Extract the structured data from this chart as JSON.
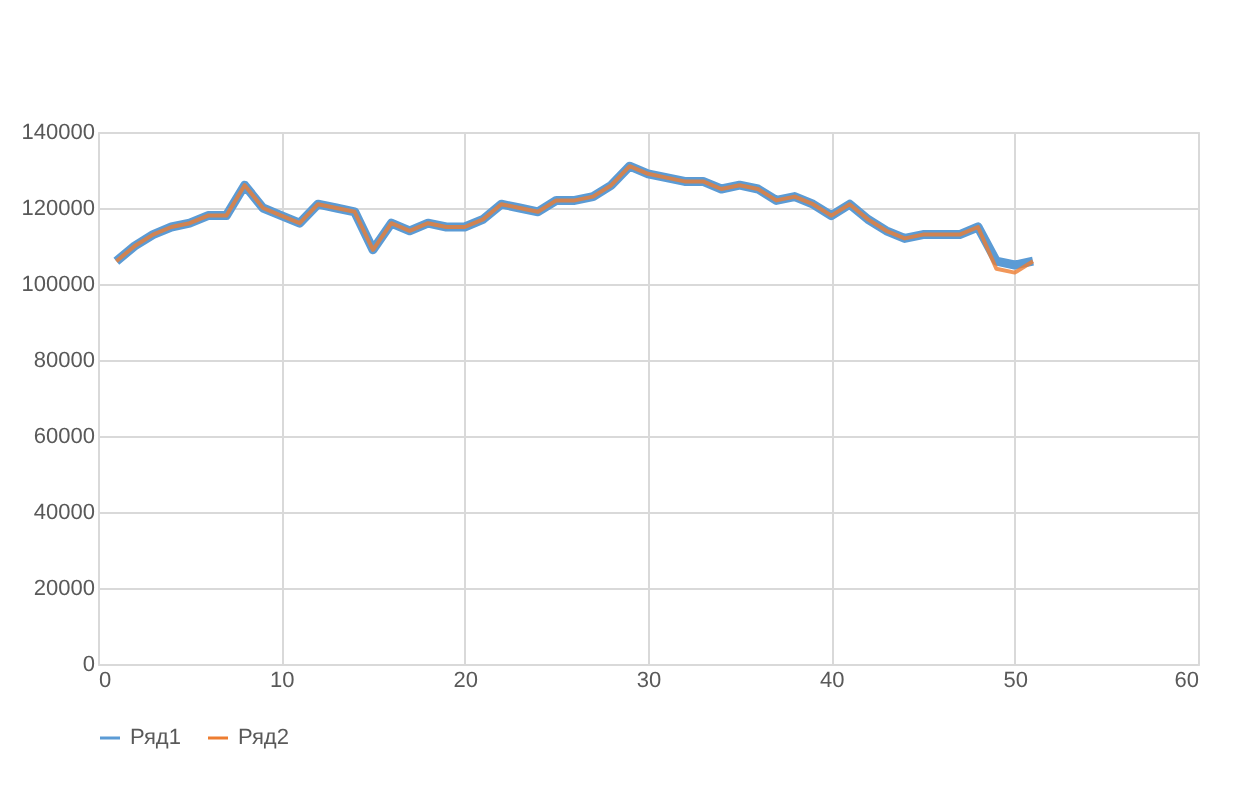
{
  "chart_data": {
    "type": "line",
    "x": [
      1,
      2,
      3,
      4,
      5,
      6,
      7,
      8,
      9,
      10,
      11,
      12,
      13,
      14,
      15,
      16,
      17,
      18,
      19,
      20,
      21,
      22,
      23,
      24,
      25,
      26,
      27,
      28,
      29,
      30,
      31,
      32,
      33,
      34,
      35,
      36,
      37,
      38,
      39,
      40,
      41,
      42,
      43,
      44,
      45,
      46,
      47,
      48,
      49,
      50,
      51
    ],
    "series": [
      {
        "name": "Ряд1",
        "color": "#5b9bd5",
        "values": [
          106000,
          110000,
          113000,
          115000,
          116000,
          118000,
          118000,
          126000,
          120000,
          118000,
          116000,
          121000,
          120000,
          119000,
          109000,
          116000,
          114000,
          116000,
          115000,
          115000,
          117000,
          121000,
          120000,
          119000,
          122000,
          122000,
          123000,
          126000,
          131000,
          129000,
          128000,
          127000,
          127000,
          125000,
          126000,
          125000,
          122000,
          123000,
          121000,
          118000,
          121000,
          117000,
          114000,
          112000,
          113000,
          113000,
          113000,
          115000,
          106000,
          105000,
          106000
        ]
      },
      {
        "name": "Ряд2",
        "color": "#ed7d31",
        "values": [
          106000,
          110000,
          113000,
          115000,
          116000,
          118000,
          118000,
          126000,
          120000,
          118000,
          116000,
          121000,
          120000,
          119000,
          109000,
          116000,
          114000,
          116000,
          115000,
          115000,
          117000,
          121000,
          120000,
          119000,
          122000,
          122000,
          123000,
          126000,
          131000,
          129000,
          128000,
          127000,
          127000,
          125000,
          126000,
          125000,
          122000,
          123000,
          121000,
          118000,
          121000,
          117000,
          114000,
          112000,
          113000,
          113000,
          113000,
          115000,
          104000,
          103000,
          106000
        ]
      }
    ],
    "xlim": [
      0,
      60
    ],
    "xticks": [
      0,
      10,
      20,
      30,
      40,
      50,
      60
    ],
    "ylim": [
      0,
      140000
    ],
    "yticks": [
      0,
      20000,
      40000,
      60000,
      80000,
      100000,
      120000,
      140000
    ],
    "grid": true,
    "legend": "bottom",
    "marker": "none",
    "line_style": "solid"
  }
}
